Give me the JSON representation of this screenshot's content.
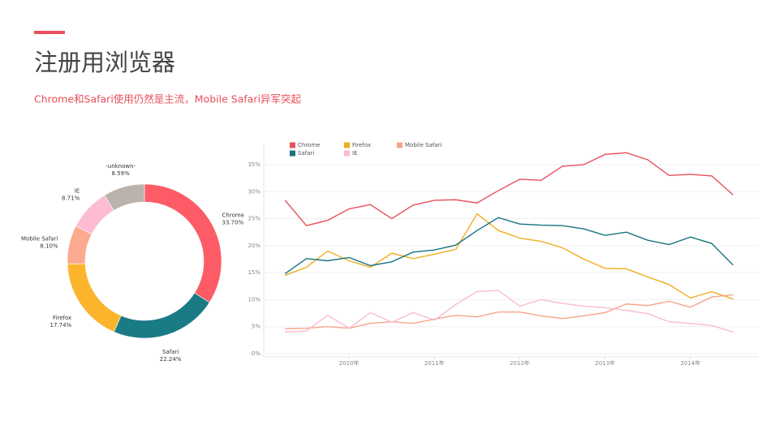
{
  "header": {
    "title": "注册用浏览器",
    "subtitle": "Chrome和Safari使用仍然是主流，Mobile   Safari异军突起"
  },
  "chart_data": [
    {
      "type": "pie",
      "categories": [
        "Chrome",
        "Safari",
        "Firefox",
        "Mobile Safari",
        "IE",
        "-unknown-"
      ],
      "values": [
        33.7,
        22.24,
        17.74,
        8.1,
        8.71,
        8.59
      ],
      "value_labels": [
        "33.70%",
        "22.24%",
        "17.74%",
        "8.10%",
        "8.71%",
        "8.59%"
      ],
      "colors": [
        "#fd5c67",
        "#1a7b85",
        "#fbb52d",
        "#fcaa8f",
        "#fdbcd1",
        "#bbb2ac"
      ]
    },
    {
      "type": "line",
      "x": [
        2009.25,
        2009.5,
        2009.75,
        2010,
        2010.25,
        2010.5,
        2010.75,
        2011,
        2011.25,
        2011.5,
        2011.75,
        2012,
        2012.25,
        2012.5,
        2012.75,
        2013,
        2013.25,
        2013.5,
        2013.75,
        2014,
        2014.25,
        2014.5
      ],
      "xlim": [
        2009,
        2014.8
      ],
      "xticks": [
        {
          "value": 2010,
          "label": "2010年"
        },
        {
          "value": 2011,
          "label": "2011年"
        },
        {
          "value": 2012,
          "label": "2012年"
        },
        {
          "value": 2013,
          "label": "2013年"
        },
        {
          "value": 2014,
          "label": "2014年"
        }
      ],
      "ylim": [
        0,
        38
      ],
      "yticks": [
        {
          "value": 0,
          "label": "0%"
        },
        {
          "value": 5,
          "label": "5%"
        },
        {
          "value": 10,
          "label": "10%"
        },
        {
          "value": 15,
          "label": "15%"
        },
        {
          "value": 20,
          "label": "20%"
        },
        {
          "value": 25,
          "label": "25%"
        },
        {
          "value": 30,
          "label": "30%"
        },
        {
          "value": 35,
          "label": "35%"
        }
      ],
      "grid": true,
      "series": [
        {
          "name": "Chrome",
          "color": "#e8505b",
          "values": [
            28.4,
            23.7,
            24.7,
            26.8,
            27.6,
            25.0,
            27.5,
            28.4,
            28.5,
            27.9,
            30.2,
            32.3,
            32.1,
            34.7,
            35.0,
            36.9,
            37.2,
            35.9,
            33.0,
            33.2,
            32.9,
            29.4
          ]
        },
        {
          "name": "Firefox",
          "color": "#f0ad1c",
          "values": [
            14.5,
            16.0,
            19.0,
            17.2,
            16.0,
            18.6,
            17.6,
            18.4,
            19.3,
            25.9,
            22.8,
            21.4,
            20.8,
            19.6,
            17.5,
            15.8,
            15.7,
            14.2,
            12.8,
            10.3,
            11.5,
            10.1
          ]
        },
        {
          "name": "Mobile Safari",
          "color": "#f4a58a",
          "values": [
            4.6,
            4.7,
            5.0,
            4.7,
            5.6,
            5.9,
            5.6,
            6.4,
            7.1,
            6.8,
            7.7,
            7.7,
            7.0,
            6.5,
            7.0,
            7.6,
            9.2,
            8.9,
            9.7,
            8.6,
            10.5,
            10.9
          ]
        },
        {
          "name": "Safari",
          "color": "#16737e",
          "values": [
            14.8,
            17.6,
            17.2,
            17.8,
            16.3,
            17.0,
            18.8,
            19.2,
            20.1,
            22.8,
            25.2,
            24.0,
            23.8,
            23.7,
            23.1,
            21.9,
            22.5,
            21.0,
            20.2,
            21.6,
            20.4,
            16.4
          ]
        },
        {
          "name": "IE",
          "color": "#f9bcd0",
          "values": [
            4.0,
            4.2,
            7.1,
            4.7,
            7.6,
            5.8,
            7.6,
            6.2,
            9.1,
            11.5,
            11.7,
            8.8,
            10.0,
            9.3,
            8.8,
            8.5,
            8.0,
            7.4,
            5.9,
            5.6,
            5.2,
            4.0
          ]
        }
      ]
    }
  ]
}
